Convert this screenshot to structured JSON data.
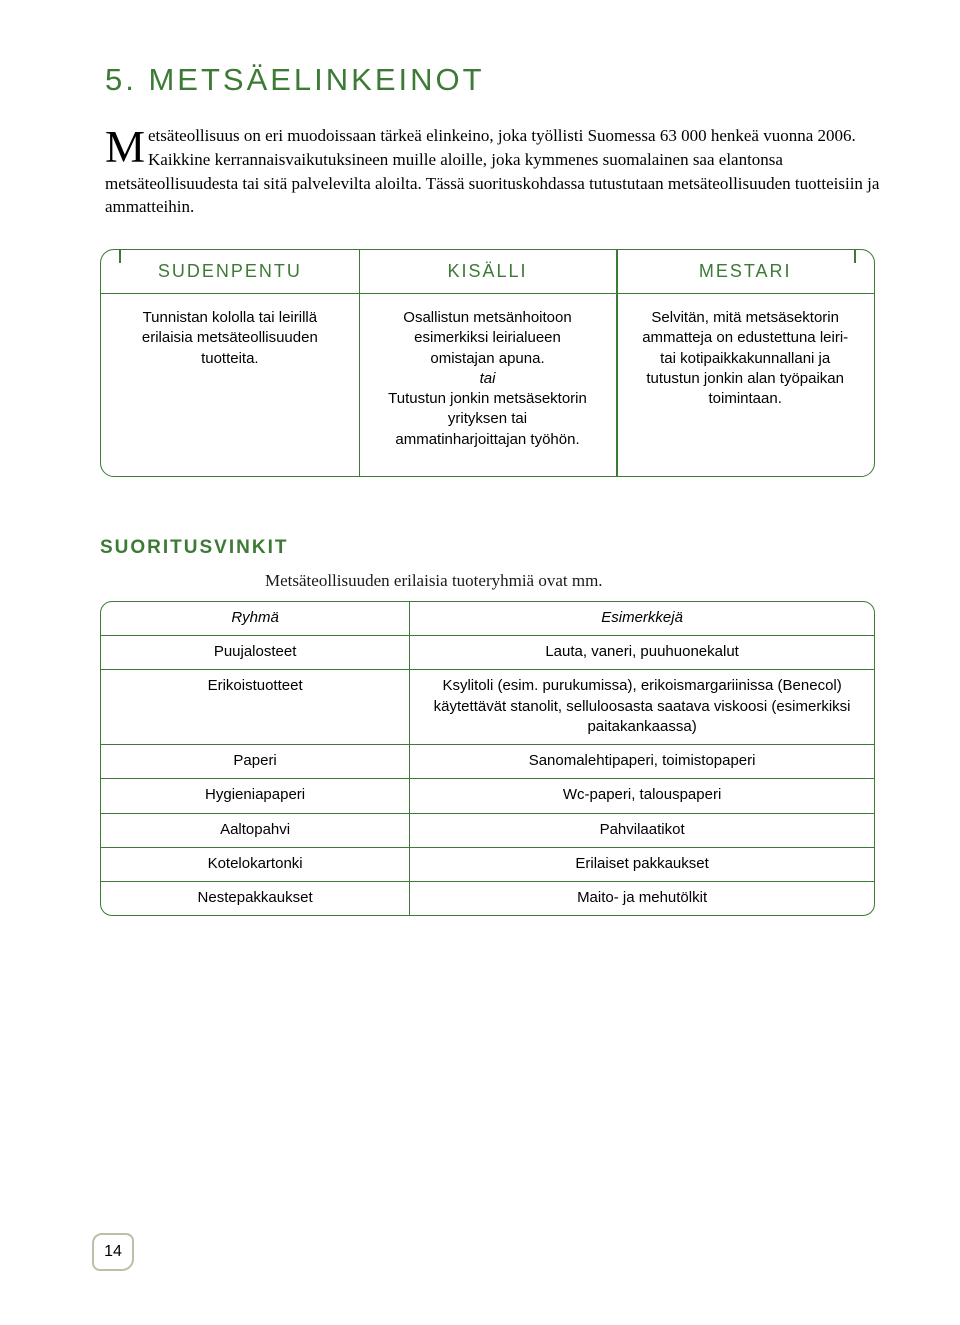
{
  "colors": {
    "accent": "#3d7a36",
    "text": "#000000",
    "background": "#ffffff",
    "badge_border": "#b9c1a6"
  },
  "page_title": "5. METSÄELINKEINOT",
  "intro": {
    "dropcap": "M",
    "text": "etsäteollisuus on eri muodoissaan tärkeä elinkeino, joka työllisti Suomessa 63 000 henkeä vuonna 2006. Kaikkine kerrannaisvaikutuksineen muille aloille, joka kymmenes suomalainen saa elantonsa metsäteollisuudesta tai sitä palvelevilta aloilta. Tässä suorituskohdassa tutustutaan metsäteollisuuden tuotteisiin ja ammatteihin."
  },
  "levels": {
    "headers": [
      "SUDENPENTU",
      "KISÄLLI",
      "MESTARI"
    ],
    "col1": "Tunnistan kololla tai leirillä erilaisia metsäteollisuuden tuotteita.",
    "col2_a": "Osallistun metsänhoitoon esimerkiksi leirialueen omistajan apuna.",
    "col2_tai": "tai",
    "col2_b": "Tutustun jonkin metsäsektorin yrityksen tai ammatinharjoittajan työhön.",
    "col3": "Selvitän, mitä metsäsektorin ammatteja on edustettuna leiri- tai kotipaikkakunnallani ja tutustun jonkin alan työpaikan toimintaan."
  },
  "tips": {
    "heading": "SUORITUSVINKIT",
    "intro": "Metsäteollisuuden erilaisia tuoteryhmiä ovat mm.",
    "table": {
      "columns": [
        "Ryhmä",
        "Esimerkkejä"
      ],
      "rows": [
        [
          "Puujalosteet",
          "Lauta, vaneri, puuhuonekalut"
        ],
        [
          "Erikoistuotteet",
          "Ksylitoli (esim. purukumissa), erikoismargariinissa (Benecol) käytettävät stanolit, selluloosasta saatava viskoosi (esimerkiksi paitakankaassa)"
        ],
        [
          "Paperi",
          "Sanomalehtipaperi, toimistopaperi"
        ],
        [
          "Hygieniapaperi",
          "Wc-paperi, talouspaperi"
        ],
        [
          "Aaltopahvi",
          "Pahvilaatikot"
        ],
        [
          "Kotelokartonki",
          "Erilaiset pakkaukset"
        ],
        [
          "Nestepakkaukset",
          "Maito- ja mehutölkit"
        ]
      ]
    }
  },
  "page_number": "14"
}
